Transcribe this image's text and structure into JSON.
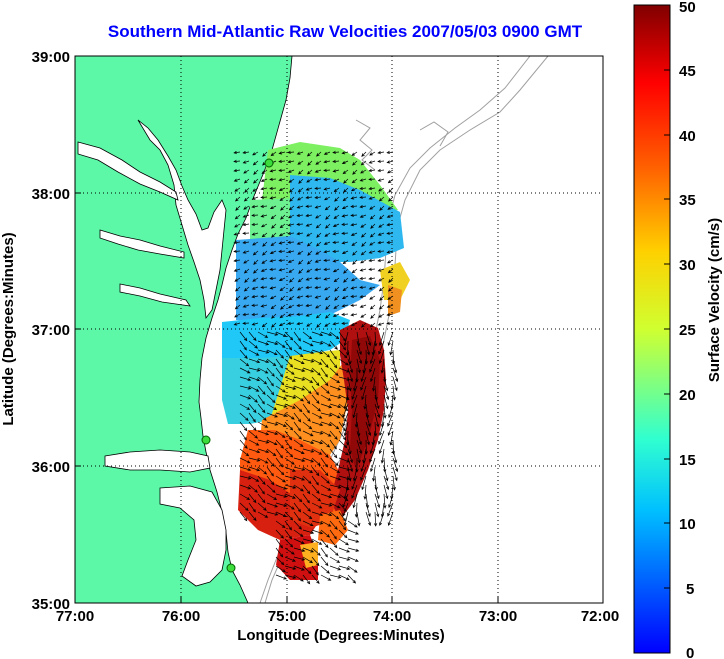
{
  "title": "Southern Mid-Atlantic Raw Velocities 2007/05/03 0900 GMT",
  "axes": {
    "xlabel": "Longitude (Degrees:Minutes)",
    "ylabel": "Latitude (Degrees:Minutes)",
    "x_ticks": [
      "77:00",
      "76:00",
      "75:00",
      "74:00",
      "73:00",
      "72:00"
    ],
    "y_ticks": [
      "39:00",
      "38:00",
      "37:00",
      "36:00",
      "35:00"
    ],
    "x_range_deg_west": [
      77,
      72
    ],
    "y_range_deg_north": [
      35,
      39
    ],
    "grid": "dotted"
  },
  "colorbar": {
    "label": "Surface Velocity (cm/s)",
    "ticks": [
      "0",
      "5",
      "10",
      "15",
      "20",
      "25",
      "30",
      "35",
      "40",
      "45",
      "50"
    ],
    "range": [
      0,
      50
    ],
    "colormap": "jet"
  },
  "colors": {
    "land": "#5cf8a8",
    "title": "#0000ff",
    "bathymetry": "#a0a0a0",
    "site_marker": "#3cdc3c"
  }
}
